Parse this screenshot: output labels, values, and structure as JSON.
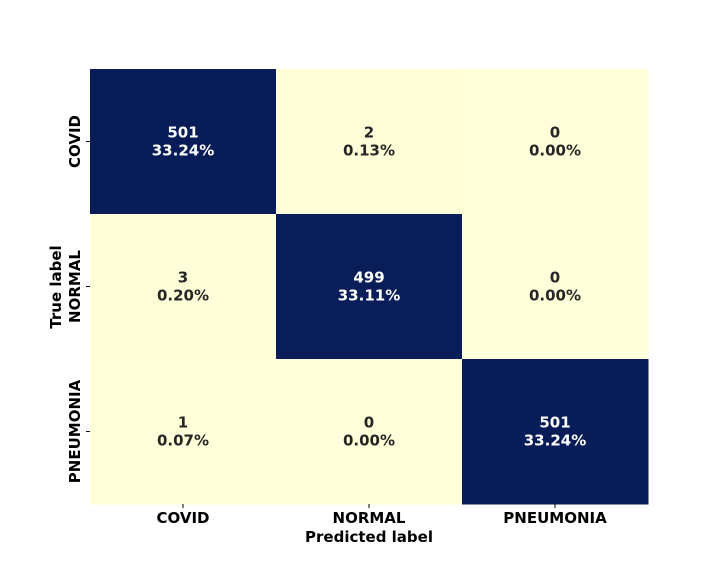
{
  "chart_data": {
    "type": "heatmap",
    "title": "",
    "xlabel": "Predicted label",
    "ylabel": "True label",
    "x_categories": [
      "COVID",
      "NORMAL",
      "PNEUMONIA"
    ],
    "y_categories": [
      "COVID",
      "NORMAL",
      "PNEUMONIA"
    ],
    "values": [
      [
        501,
        2,
        0
      ],
      [
        3,
        499,
        0
      ],
      [
        1,
        0,
        501
      ]
    ],
    "percent_labels": [
      [
        "33.24%",
        "0.13%",
        "0.00%"
      ],
      [
        "0.20%",
        "33.11%",
        "0.00%"
      ],
      [
        "0.07%",
        "0.00%",
        "33.24%"
      ]
    ],
    "colormap": "YlGnBu",
    "colors": {
      "low": "#ffffd9",
      "high": "#081d58",
      "text_on_low": "#262626",
      "text_on_high": "#ffffff"
    },
    "colorbar": false,
    "grid": false
  }
}
